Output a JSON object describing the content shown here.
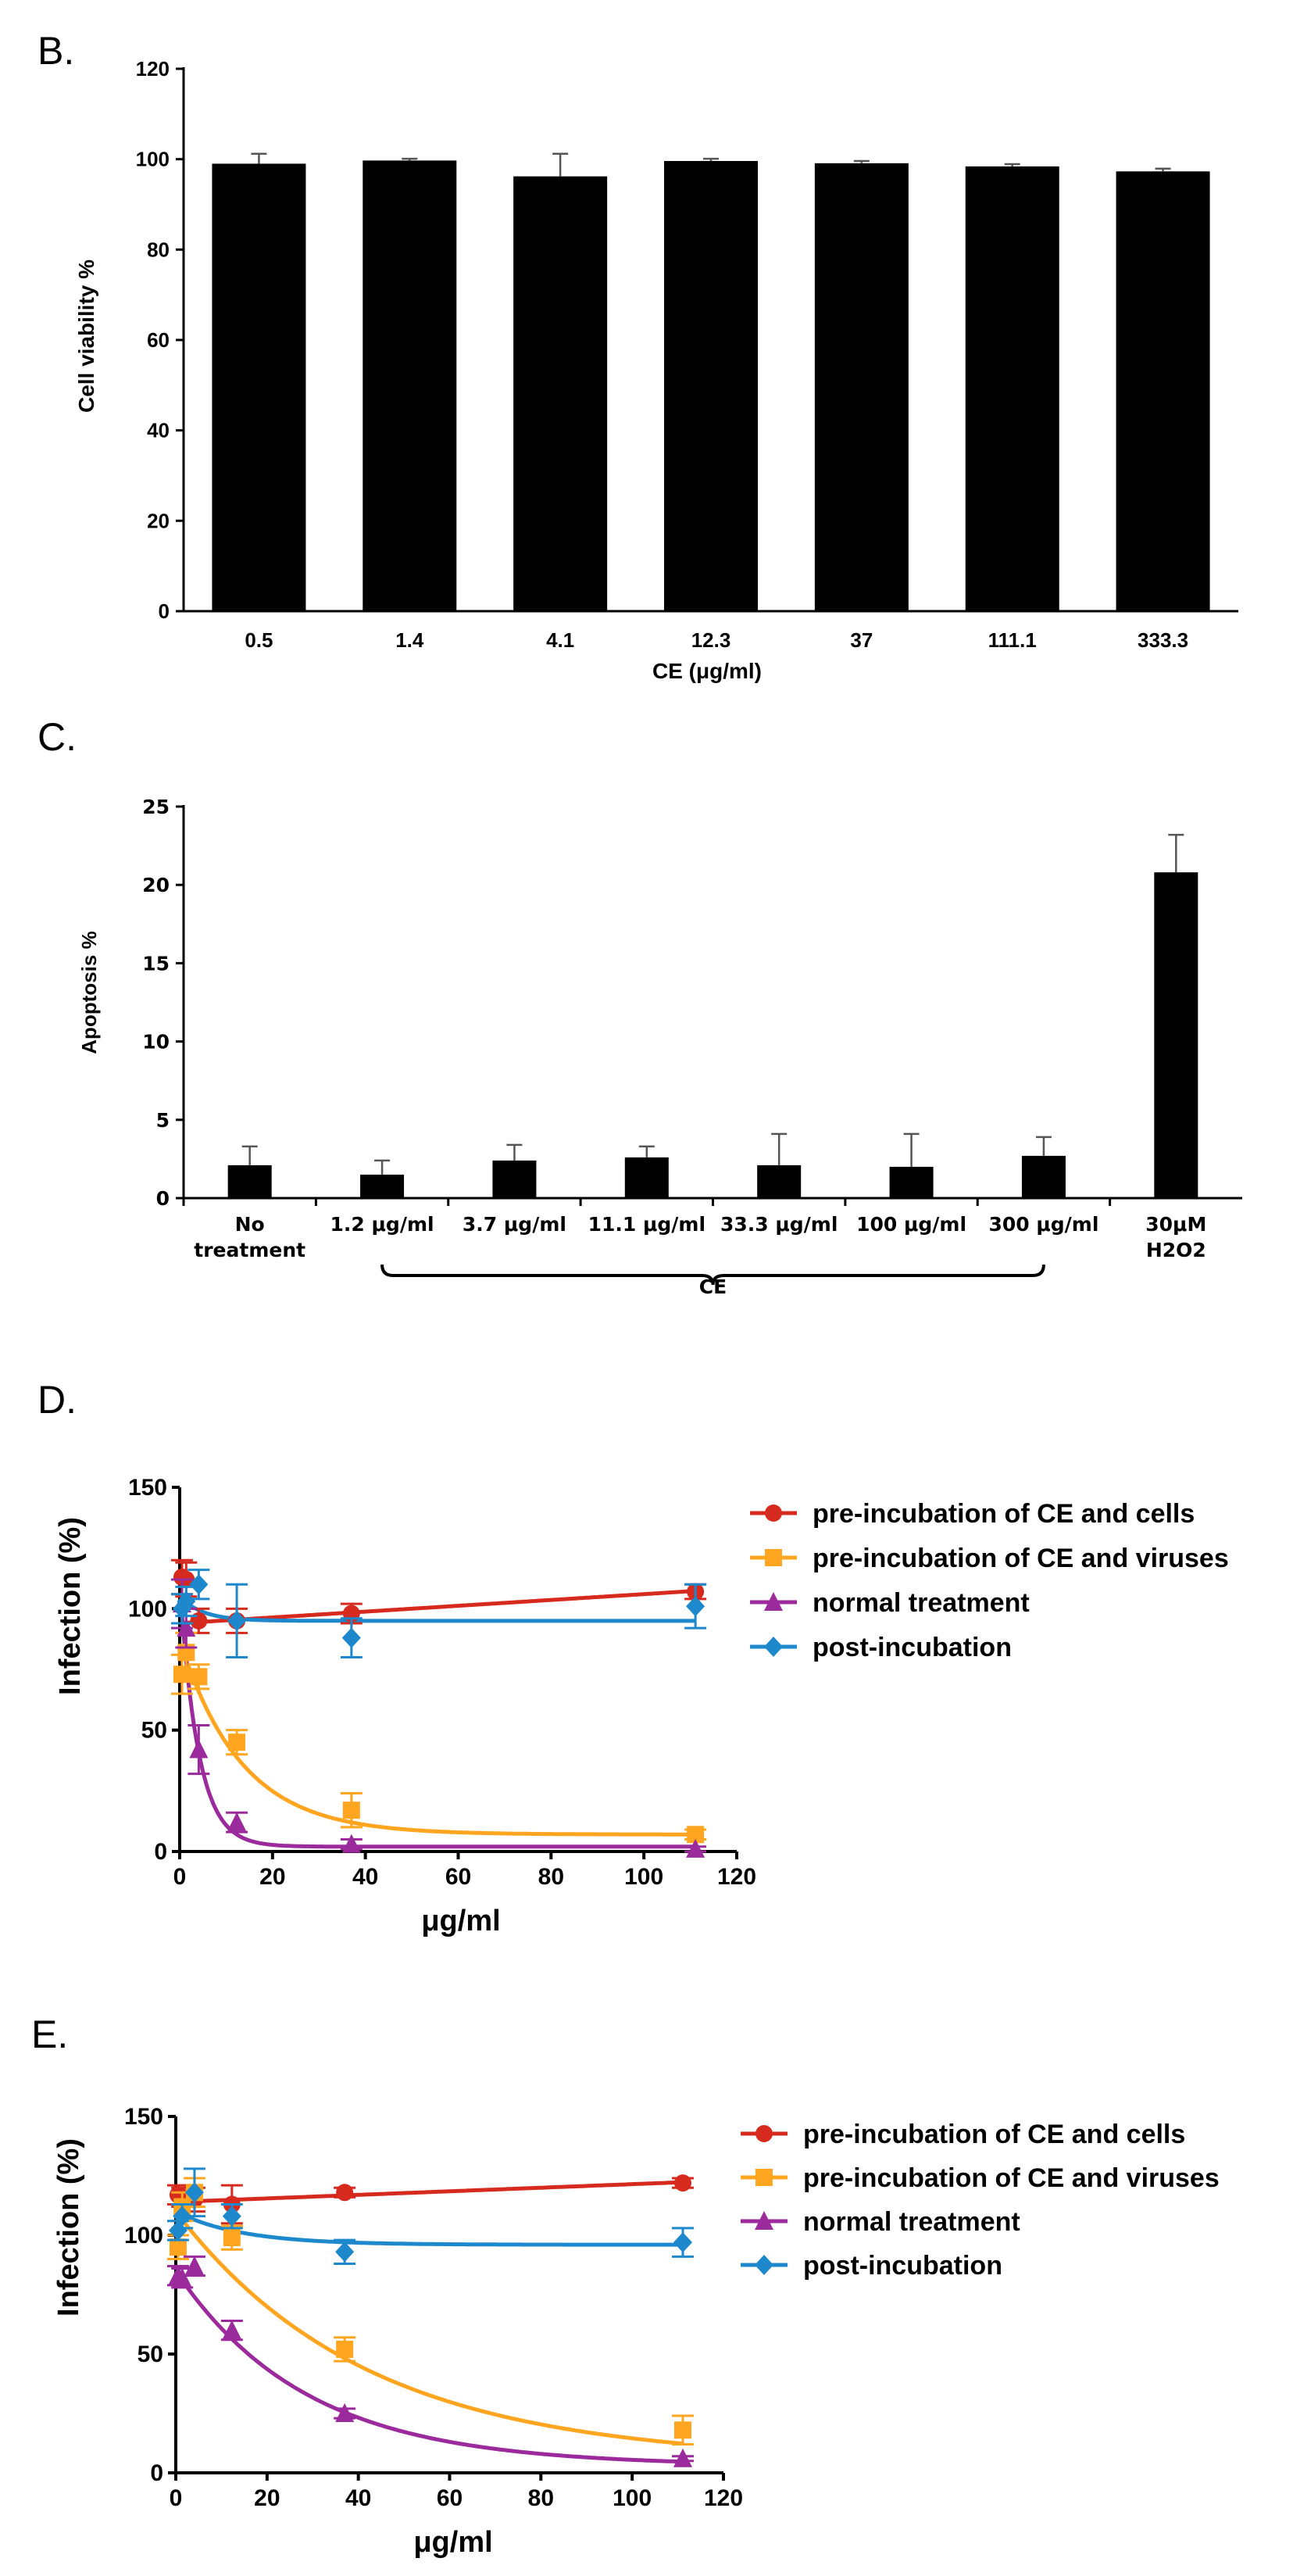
{
  "chart_data": [
    {
      "panel": "B.",
      "type": "bar",
      "title": "",
      "xlabel": "CE (μg/ml)",
      "ylabel": "Cell viability %",
      "ylim": [
        0,
        120
      ],
      "yticks": [
        0,
        20,
        40,
        60,
        80,
        100,
        120
      ],
      "categories": [
        "0.5",
        "1.4",
        "4.1",
        "12.3",
        "37",
        "111.1",
        "333.3"
      ],
      "values": [
        99,
        99.7,
        96.2,
        99.6,
        99.1,
        98.4,
        97.3
      ],
      "errors": [
        2.2,
        0.4,
        5.0,
        0.5,
        0.5,
        0.5,
        0.6
      ],
      "bar_color": "#000000",
      "grid": false
    },
    {
      "panel": "C.",
      "type": "bar",
      "title": "",
      "xlabel": "CE",
      "ylabel": "Apoptosis %",
      "ylim": [
        0,
        25
      ],
      "yticks": [
        0,
        5,
        10,
        15,
        20,
        25
      ],
      "categories": [
        "No treatment",
        "1.2 μg/ml",
        "3.7 μg/ml",
        "11.1 μg/ml",
        "33.3 μg/ml",
        "100 μg/ml",
        "300 μg/ml",
        "30μM H2O2"
      ],
      "category_lines": [
        [
          "No",
          "treatment"
        ],
        [
          "1.2 μg/ml"
        ],
        [
          "3.7 μg/ml"
        ],
        [
          "11.1 μg/ml"
        ],
        [
          "33.3 μg/ml"
        ],
        [
          "100 μg/ml"
        ],
        [
          "300 μg/ml"
        ],
        [
          "30μM",
          "H2O2"
        ]
      ],
      "values": [
        2.1,
        1.5,
        2.4,
        2.6,
        2.1,
        2.0,
        2.7,
        20.8
      ],
      "errors": [
        1.2,
        0.9,
        1.0,
        0.7,
        2.0,
        2.1,
        1.2,
        2.4
      ],
      "bracket": {
        "from_index": 1,
        "to_index": 6,
        "label": "CE"
      },
      "bar_color": "#000000",
      "grid": false
    },
    {
      "panel": "D.",
      "type": "scatter",
      "xlabel": "μg/ml",
      "ylabel": "Infection (%)",
      "xlim": [
        0,
        120
      ],
      "ylim": [
        0,
        150
      ],
      "xticks": [
        0,
        20,
        40,
        60,
        80,
        100,
        120
      ],
      "yticks": [
        0,
        50,
        100,
        150
      ],
      "legend_position": "top-right",
      "series": [
        {
          "name": "pre-incubation of CE and cells",
          "color": "#d62a1e",
          "marker": "circle",
          "x": [
            0.5,
            1.4,
            4.1,
            12.3,
            37,
            111.1
          ],
          "y": [
            113,
            112,
            95,
            95,
            98,
            107
          ],
          "err": [
            7,
            7,
            5,
            5,
            4,
            3
          ],
          "fit": {
            "kind": "linear",
            "a": 94,
            "b": 0.12
          }
        },
        {
          "name": "pre-incubation of CE and viruses",
          "color": "#ffa51f",
          "marker": "square",
          "x": [
            0.5,
            1.4,
            4.1,
            12.3,
            37,
            111.1
          ],
          "y": [
            73,
            82,
            72,
            45,
            17,
            7
          ],
          "err": [
            8,
            8,
            5,
            5,
            7,
            2
          ],
          "fit": {
            "kind": "exp",
            "bottom": 7,
            "span": 80,
            "k": 0.075
          }
        },
        {
          "name": "normal treatment",
          "color": "#9b2a9c",
          "marker": "triangle",
          "x": [
            0.5,
            1.4,
            4.1,
            12.3,
            37,
            111.1
          ],
          "y": [
            102,
            92,
            42,
            12,
            3,
            1
          ],
          "err": [
            10,
            8,
            10,
            4,
            2,
            1
          ],
          "fit": {
            "kind": "exp",
            "bottom": 2,
            "span": 108,
            "k": 0.25
          }
        },
        {
          "name": "post-incubation",
          "color": "#1d88cc",
          "marker": "diamond",
          "x": [
            0.5,
            1.4,
            4.1,
            12.3,
            37,
            111.1
          ],
          "y": [
            100,
            103,
            110,
            95,
            88,
            101
          ],
          "err": [
            6,
            6,
            6,
            15,
            8,
            9
          ],
          "fit": {
            "kind": "exp",
            "bottom": 95,
            "span": 10,
            "k": 0.2
          }
        }
      ]
    },
    {
      "panel": "E.",
      "type": "scatter",
      "xlabel": "μg/ml",
      "ylabel": "Infection (%)",
      "xlim": [
        0,
        120
      ],
      "ylim": [
        0,
        150
      ],
      "xticks": [
        0,
        20,
        40,
        60,
        80,
        100,
        120
      ],
      "yticks": [
        0,
        50,
        100,
        150
      ],
      "legend_position": "top-right",
      "series": [
        {
          "name": "pre-incubation of CE and cells",
          "color": "#d62a1e",
          "marker": "circle",
          "x": [
            0.5,
            1.4,
            4.1,
            12.3,
            37,
            111.1
          ],
          "y": [
            117,
            116,
            115,
            113,
            118,
            122
          ],
          "err": [
            4,
            4,
            5,
            8,
            2,
            2
          ],
          "fit": {
            "kind": "linear",
            "a": 114,
            "b": 0.075
          }
        },
        {
          "name": "pre-incubation of CE and viruses",
          "color": "#ffa51f",
          "marker": "square",
          "x": [
            0.5,
            1.4,
            4.1,
            12.3,
            37,
            111.1
          ],
          "y": [
            95,
            112,
            118,
            99,
            52,
            18
          ],
          "err": [
            5,
            6,
            6,
            5,
            5,
            6
          ],
          "fit": {
            "kind": "exp",
            "bottom": 5,
            "span": 105,
            "k": 0.024
          }
        },
        {
          "name": "normal treatment",
          "color": "#9b2a9c",
          "marker": "triangle",
          "x": [
            0.5,
            1.4,
            4.1,
            12.3,
            37,
            111.1
          ],
          "y": [
            83,
            82,
            87,
            60,
            25,
            6
          ],
          "err": [
            4,
            4,
            4,
            4,
            2,
            1
          ],
          "fit": {
            "kind": "exp",
            "bottom": 3,
            "span": 82,
            "k": 0.035
          }
        },
        {
          "name": "post-incubation",
          "color": "#1d88cc",
          "marker": "diamond",
          "x": [
            0.5,
            1.4,
            4.1,
            12.3,
            37,
            111.1
          ],
          "y": [
            102,
            108,
            118,
            108,
            93,
            97
          ],
          "err": [
            4,
            5,
            10,
            5,
            5,
            6
          ],
          "fit": {
            "kind": "exp",
            "bottom": 96,
            "span": 14,
            "k": 0.07
          }
        }
      ]
    }
  ]
}
